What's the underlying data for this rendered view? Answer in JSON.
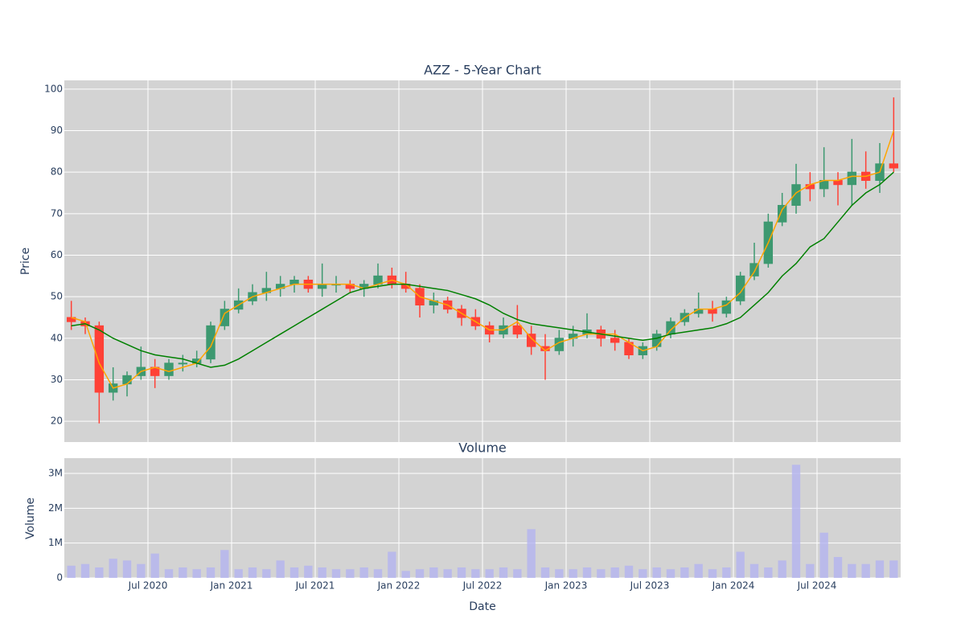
{
  "chart_data": [
    {
      "type": "candlestick",
      "title": "AZZ - 5-Year Chart",
      "ylabel": "Price",
      "x": [
        "2020-01",
        "2020-02",
        "2020-03",
        "2020-04",
        "2020-05",
        "2020-06",
        "2020-07",
        "2020-08",
        "2020-09",
        "2020-10",
        "2020-11",
        "2020-12",
        "2021-01",
        "2021-02",
        "2021-03",
        "2021-04",
        "2021-05",
        "2021-06",
        "2021-07",
        "2021-08",
        "2021-09",
        "2021-10",
        "2021-11",
        "2021-12",
        "2022-01",
        "2022-02",
        "2022-03",
        "2022-04",
        "2022-05",
        "2022-06",
        "2022-07",
        "2022-08",
        "2022-09",
        "2022-10",
        "2022-11",
        "2022-12",
        "2023-01",
        "2023-02",
        "2023-03",
        "2023-04",
        "2023-05",
        "2023-06",
        "2023-07",
        "2023-08",
        "2023-09",
        "2023-10",
        "2023-11",
        "2023-12",
        "2024-01",
        "2024-02",
        "2024-03",
        "2024-04",
        "2024-05",
        "2024-06",
        "2024-07",
        "2024-08",
        "2024-09",
        "2024-10",
        "2024-11",
        "2024-12"
      ],
      "open": [
        45,
        44,
        43,
        27,
        29,
        31,
        33,
        31,
        34,
        34,
        35,
        43,
        47,
        49,
        51,
        52,
        53,
        54,
        52,
        53,
        53,
        52,
        53,
        55,
        53,
        52,
        48,
        49,
        47,
        45,
        43,
        41,
        43,
        41,
        38,
        37,
        40,
        41,
        42,
        40,
        39,
        36,
        38,
        41,
        44,
        46,
        47,
        46,
        49,
        55,
        58,
        68,
        72,
        77,
        76,
        78,
        77,
        80,
        78,
        82
      ],
      "high": [
        49,
        45,
        44,
        33,
        32,
        38,
        35,
        35,
        36,
        37,
        44,
        49,
        52,
        53,
        56,
        55,
        55,
        55,
        58,
        55,
        54,
        54,
        58,
        57,
        56,
        53,
        51,
        50,
        48,
        47,
        44,
        45,
        48,
        43,
        41,
        42,
        43,
        46,
        43,
        42,
        40,
        39,
        42,
        45,
        47,
        51,
        49,
        50,
        56,
        63,
        70,
        75,
        82,
        80,
        86,
        80,
        88,
        85,
        87,
        98
      ],
      "low": [
        42,
        41,
        19.5,
        25,
        26,
        30,
        28,
        30,
        32,
        33,
        34,
        42,
        46,
        48,
        49,
        50,
        51,
        51,
        50,
        51,
        51,
        50,
        52,
        52,
        51,
        45,
        46,
        46,
        43,
        42,
        39,
        40,
        40,
        36,
        30,
        36,
        38,
        40,
        38,
        37,
        35,
        35,
        37,
        40,
        43,
        45,
        44,
        45,
        48,
        54,
        57,
        67,
        70,
        73,
        74,
        72,
        72,
        76,
        75,
        80
      ],
      "close": [
        44,
        43,
        27,
        29,
        31,
        33,
        31,
        34,
        34,
        35,
        43,
        47,
        49,
        51,
        52,
        53,
        54,
        52,
        53,
        53,
        52,
        53,
        55,
        53,
        52,
        48,
        49,
        47,
        45,
        43,
        41,
        43,
        41,
        38,
        37,
        40,
        41,
        42,
        40,
        39,
        36,
        38,
        41,
        44,
        46,
        47,
        46,
        49,
        55,
        58,
        68,
        72,
        77,
        76,
        78,
        77,
        80,
        78,
        82,
        81
      ],
      "increasing_color": "#3d9970",
      "decreasing_color": "#ff4136",
      "series": [
        {
          "color": "#ffa500",
          "values": [
            45,
            44,
            34,
            28,
            29,
            32,
            33,
            32,
            33,
            34,
            38,
            46,
            48,
            50,
            51,
            52,
            53,
            53,
            53,
            53,
            53,
            52,
            53,
            54,
            53,
            50,
            49,
            48,
            46,
            44,
            42,
            42,
            44,
            40,
            37,
            39,
            40,
            41,
            41,
            41,
            39,
            37,
            38,
            42,
            45,
            47,
            47,
            48,
            51,
            56,
            63,
            71,
            75,
            77,
            78,
            78,
            79,
            79,
            80,
            90
          ]
        },
        {
          "color": "#008000",
          "values": [
            43,
            43.5,
            42,
            40,
            38.5,
            37,
            36,
            35.5,
            35,
            34,
            33,
            33.5,
            35,
            37,
            39,
            41,
            43,
            45,
            47,
            49,
            51,
            52,
            52.5,
            53,
            53,
            52.5,
            52,
            51.5,
            50.5,
            49.5,
            48,
            46,
            44.5,
            43.5,
            43,
            42.5,
            42,
            41.5,
            41,
            40.5,
            40,
            39.5,
            40,
            41,
            41.5,
            42,
            42.5,
            43.5,
            45,
            48,
            51,
            55,
            58,
            62,
            64,
            68,
            72,
            75,
            77,
            80
          ]
        }
      ],
      "xlim": [
        "2020-01",
        "2025-01"
      ],
      "ylim": [
        15,
        102.1
      ],
      "yticks": [
        20,
        30,
        40,
        50,
        60,
        70,
        80,
        90,
        100
      ],
      "grid": true
    },
    {
      "type": "bar",
      "title": "Volume",
      "ylabel": "Volume",
      "xlabel": "Date",
      "color": "#b4b4f0",
      "x": [
        "2020-01",
        "2020-02",
        "2020-03",
        "2020-04",
        "2020-05",
        "2020-06",
        "2020-07",
        "2020-08",
        "2020-09",
        "2020-10",
        "2020-11",
        "2020-12",
        "2021-01",
        "2021-02",
        "2021-03",
        "2021-04",
        "2021-05",
        "2021-06",
        "2021-07",
        "2021-08",
        "2021-09",
        "2021-10",
        "2021-11",
        "2021-12",
        "2022-01",
        "2022-02",
        "2022-03",
        "2022-04",
        "2022-05",
        "2022-06",
        "2022-07",
        "2022-08",
        "2022-09",
        "2022-10",
        "2022-11",
        "2022-12",
        "2023-01",
        "2023-02",
        "2023-03",
        "2023-04",
        "2023-05",
        "2023-06",
        "2023-07",
        "2023-08",
        "2023-09",
        "2023-10",
        "2023-11",
        "2023-12",
        "2024-01",
        "2024-02",
        "2024-03",
        "2024-04",
        "2024-05",
        "2024-06",
        "2024-07",
        "2024-08",
        "2024-09",
        "2024-10",
        "2024-11",
        "2024-12"
      ],
      "values": [
        350000,
        400000,
        300000,
        550000,
        500000,
        400000,
        700000,
        250000,
        300000,
        250000,
        300000,
        800000,
        250000,
        300000,
        250000,
        500000,
        300000,
        350000,
        300000,
        250000,
        250000,
        300000,
        250000,
        750000,
        200000,
        250000,
        300000,
        250000,
        300000,
        250000,
        250000,
        300000,
        250000,
        1400000,
        300000,
        250000,
        250000,
        300000,
        250000,
        300000,
        350000,
        250000,
        300000,
        250000,
        300000,
        400000,
        250000,
        300000,
        750000,
        400000,
        300000,
        500000,
        3250000,
        400000,
        1300000,
        600000,
        400000,
        400000,
        500000,
        500000
      ],
      "xlim": [
        "2020-01",
        "2025-01"
      ],
      "xticks": [
        {
          "value": "2020-07",
          "label": "Jul 2020"
        },
        {
          "value": "2021-01",
          "label": "Jan 2021"
        },
        {
          "value": "2021-07",
          "label": "Jul 2021"
        },
        {
          "value": "2022-01",
          "label": "Jan 2022"
        },
        {
          "value": "2022-07",
          "label": "Jul 2022"
        },
        {
          "value": "2023-01",
          "label": "Jan 2023"
        },
        {
          "value": "2023-07",
          "label": "Jul 2023"
        },
        {
          "value": "2024-01",
          "label": "Jan 2024"
        },
        {
          "value": "2024-07",
          "label": "Jul 2024"
        }
      ],
      "ylim": [
        0,
        3440000
      ],
      "yticks": [
        0,
        {
          "value": 1000000,
          "label": "1M"
        },
        {
          "value": 2000000,
          "label": "2M"
        },
        {
          "value": 3000000,
          "label": "3M"
        }
      ],
      "grid": true
    }
  ]
}
